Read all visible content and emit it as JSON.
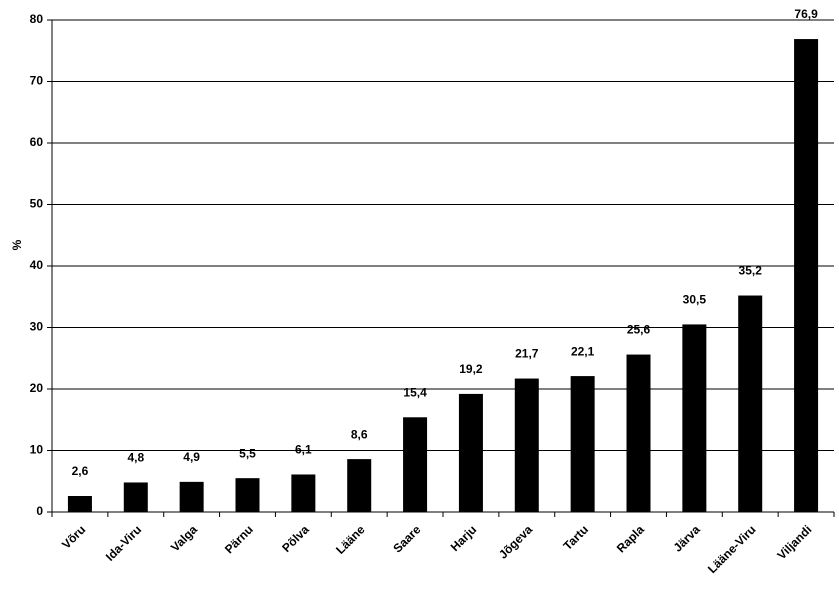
{
  "chart_data": {
    "type": "bar",
    "y_label": "%",
    "categories": [
      "Võru",
      "Ida-Viru",
      "Valga",
      "Pärnu",
      "Põlva",
      "Lääne",
      "Saare",
      "Harju",
      "Jõgeva",
      "Tartu",
      "Rapla",
      "Järva",
      "Lääne-Viru",
      "Viljandi"
    ],
    "values": [
      2.6,
      4.8,
      4.9,
      5.5,
      6.1,
      8.6,
      15.4,
      19.2,
      21.7,
      22.1,
      25.6,
      30.5,
      35.2,
      76.9
    ],
    "value_labels": [
      "2,6",
      "4,8",
      "4,9",
      "5,5",
      "6,1",
      "8,6",
      "15,4",
      "19,2",
      "21,7",
      "22,1",
      "25,6",
      "30,5",
      "35,2",
      "76,9"
    ],
    "color": "#000000",
    "ylim": [
      0,
      80
    ],
    "yticks": [
      0,
      10,
      20,
      30,
      40,
      50,
      60,
      70,
      80
    ],
    "grid": true
  }
}
